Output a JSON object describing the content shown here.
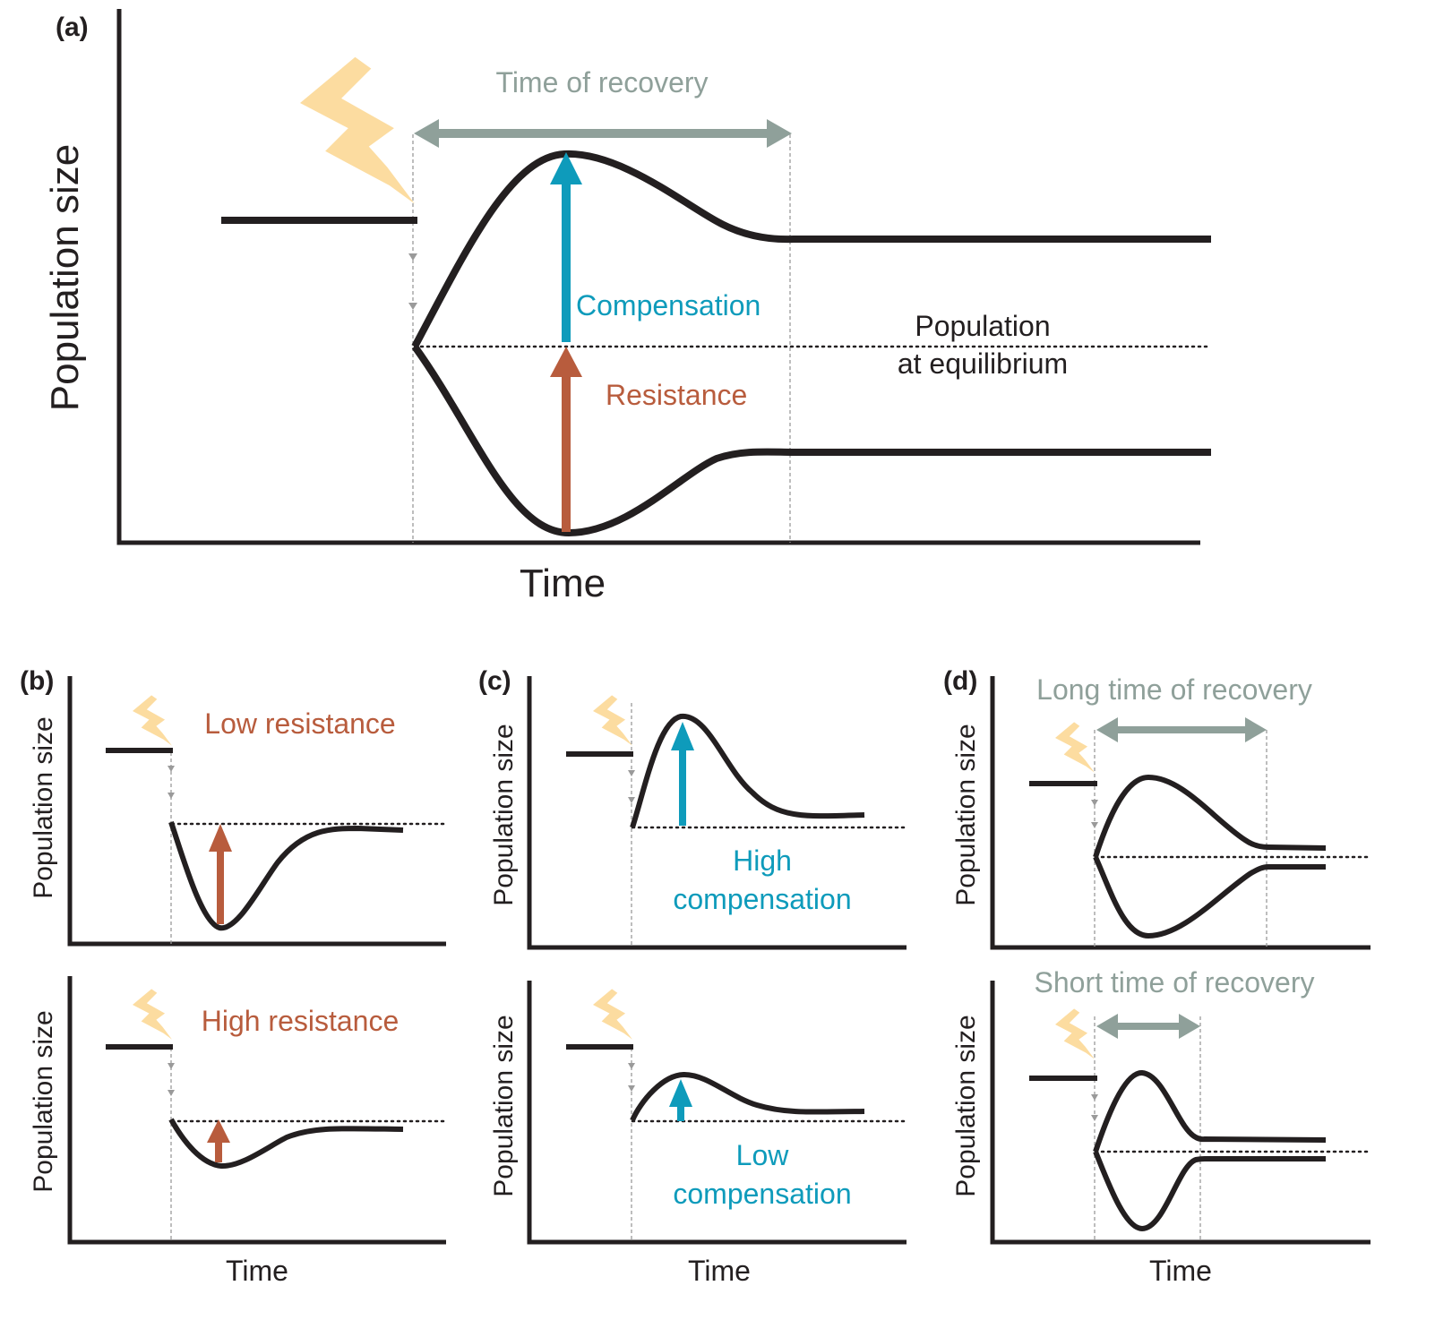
{
  "colors": {
    "ink": "#231f20",
    "recovery_gray": "#8fa09a",
    "compensation_blue": "#0e9bbb",
    "resistance_red": "#b85c3d",
    "disturbance_yellow": "#fcdca0",
    "guide_gray": "#9a9a9a"
  },
  "icons": [
    "lightning-bolt-icon"
  ],
  "panel_a": {
    "letter": "(a)",
    "ylabel": "Population size",
    "xlabel": "Time",
    "recovery_label": "Time of recovery",
    "compensation_label": "Compensation",
    "resistance_label": "Resistance",
    "equilibrium_label_1": "Population",
    "equilibrium_label_2": "at equilibrium"
  },
  "panel_b": {
    "letter": "(b)",
    "ylabel": "Population size",
    "xlabel": "Time",
    "top_label": "Low resistance",
    "bottom_label": "High resistance"
  },
  "panel_c": {
    "letter": "(c)",
    "ylabel": "Population size",
    "xlabel": "Time",
    "top_label_1": "High",
    "top_label_2": "compensation",
    "bottom_label_1": "Low",
    "bottom_label_2": "compensation"
  },
  "panel_d": {
    "letter": "(d)",
    "ylabel": "Population size",
    "xlabel": "Time",
    "top_label": "Long time of recovery",
    "bottom_label": "Short time of recovery"
  }
}
